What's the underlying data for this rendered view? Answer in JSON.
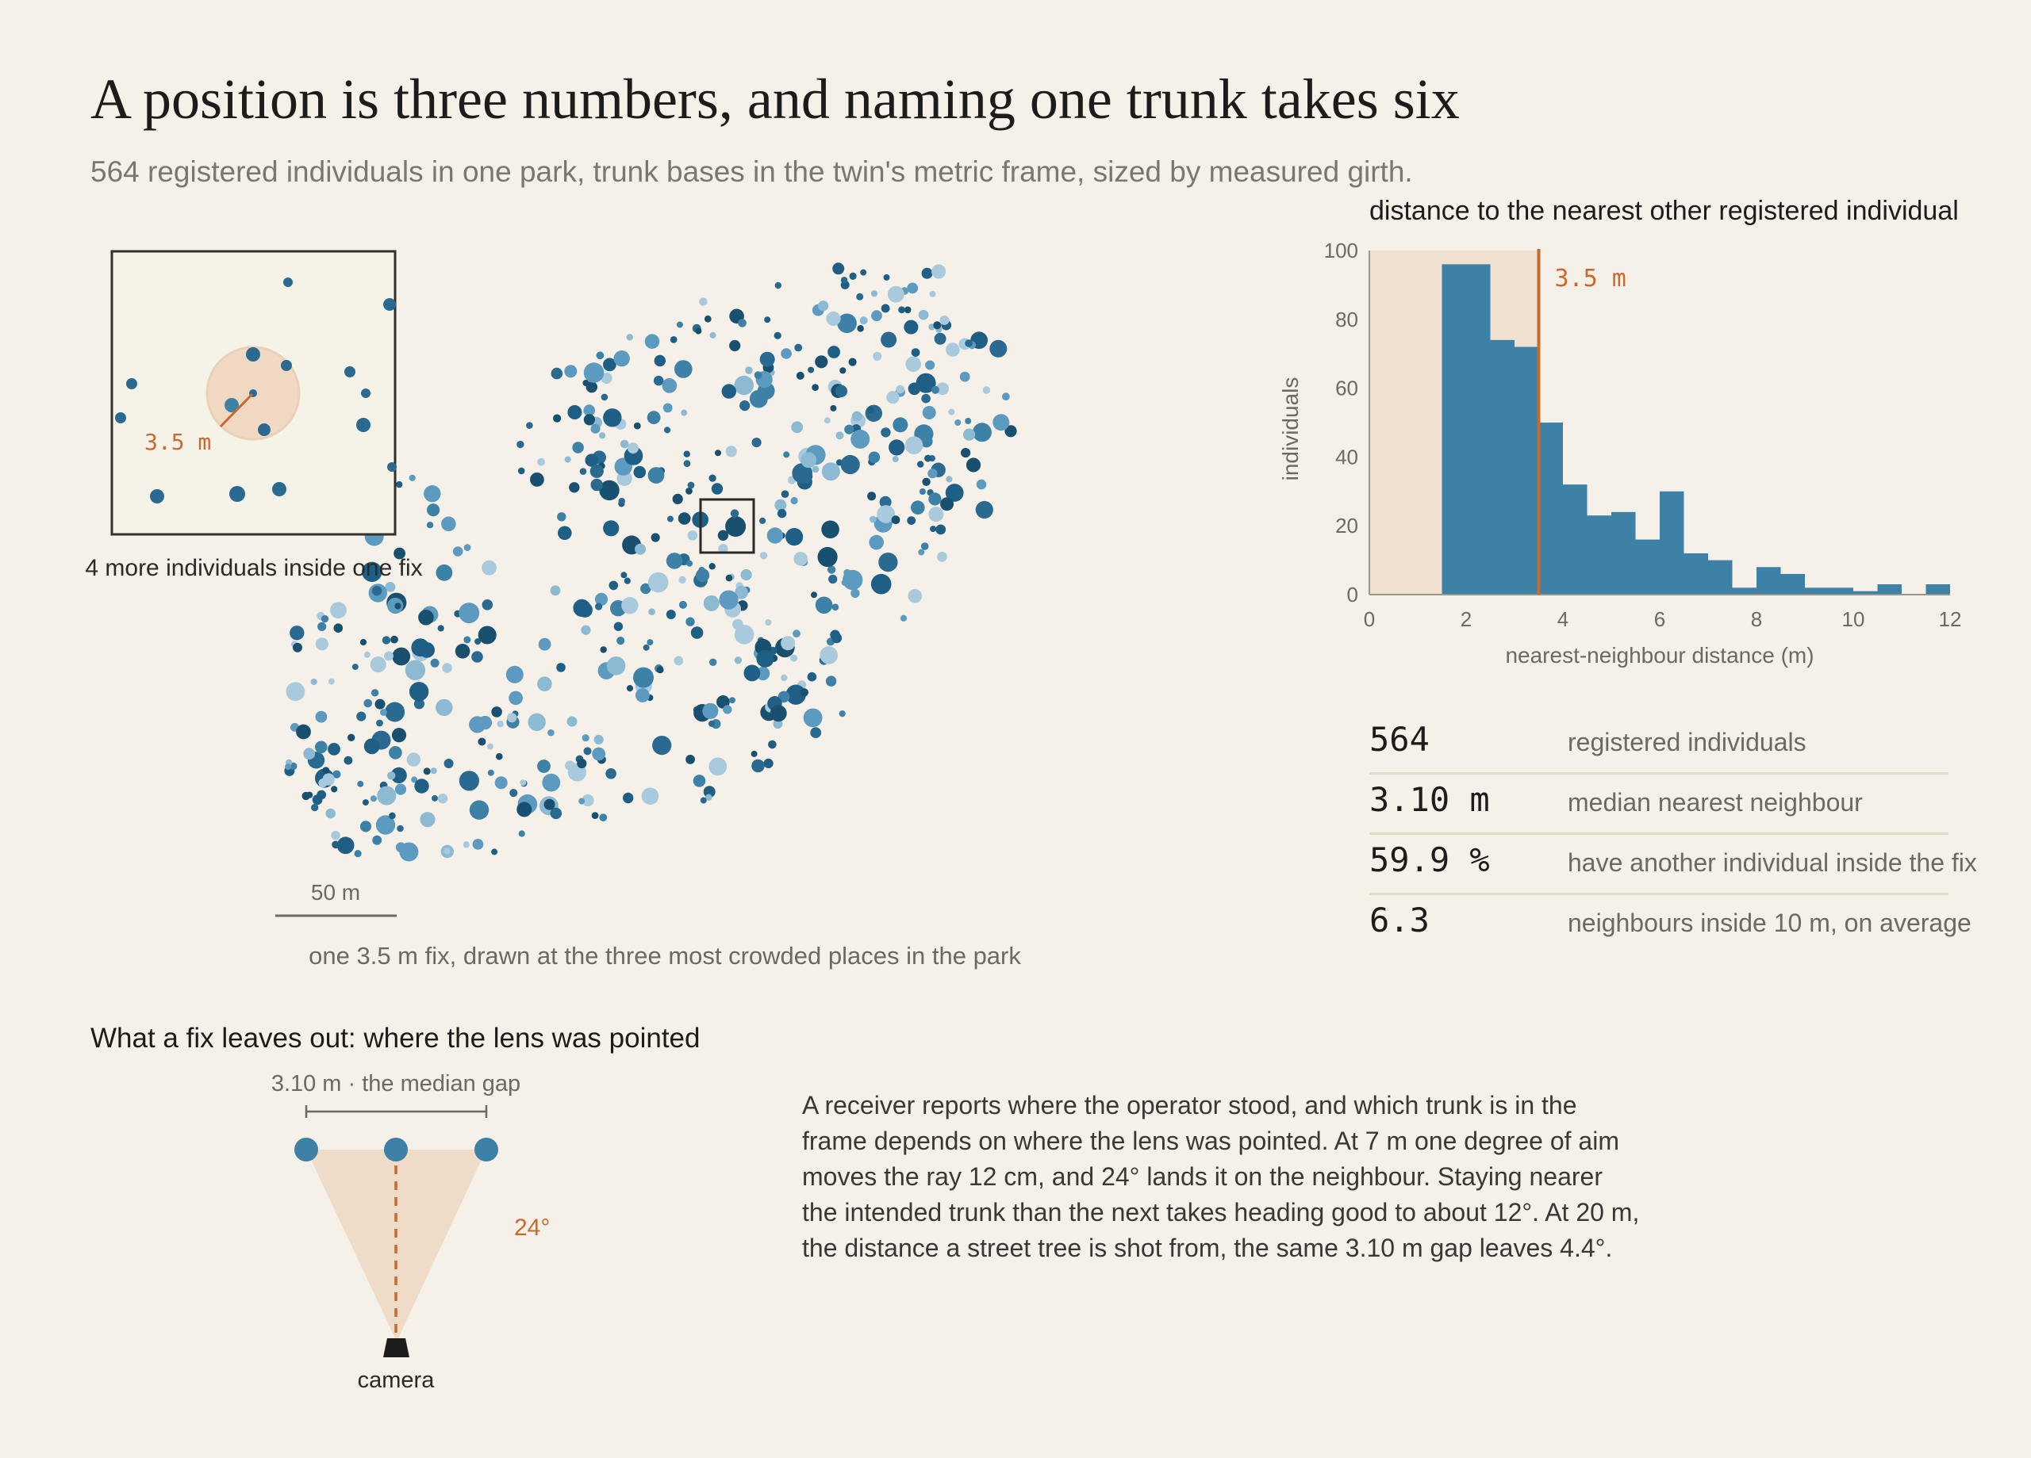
{
  "title": "A position is three numbers, and naming one trunk takes six",
  "subtitle": "564 registered individuals in one park, trunk bases in the twin's metric frame, sized by measured girth.",
  "colors": {
    "background": "#f5f0e8",
    "bar": "#3e81a6",
    "accent": "#c8692e",
    "fix_shade": "#f0e0d0",
    "dot_dark": "#1f5f85",
    "dot_light": "#a9c9dc"
  },
  "map": {
    "inset_label": "4 more individuals inside one fix",
    "inset_radius_label": "3.5 m",
    "scale_label": "50 m",
    "caption": "one 3.5 m fix, drawn at the three most crowded places in the park"
  },
  "histogram": {
    "title": "distance to the nearest other registered individual",
    "threshold_label": "3.5 m",
    "chart_data": {
      "type": "bar",
      "xlabel": "nearest-neighbour distance (m)",
      "ylabel": "individuals",
      "xlim": [
        0,
        12
      ],
      "ylim": [
        0,
        100
      ],
      "xticks": [
        0,
        2,
        4,
        6,
        8,
        10,
        12
      ],
      "yticks": [
        0,
        20,
        40,
        60,
        80,
        100
      ],
      "threshold": 3.5,
      "shaded_range": [
        0,
        3.5
      ],
      "bin_width": 0.5,
      "bins": [
        {
          "x0": 1.5,
          "count": 96
        },
        {
          "x0": 2.0,
          "count": 96
        },
        {
          "x0": 2.5,
          "count": 74
        },
        {
          "x0": 3.0,
          "count": 72
        },
        {
          "x0": 3.5,
          "count": 50
        },
        {
          "x0": 4.0,
          "count": 32
        },
        {
          "x0": 4.5,
          "count": 23
        },
        {
          "x0": 5.0,
          "count": 24
        },
        {
          "x0": 5.5,
          "count": 16
        },
        {
          "x0": 6.0,
          "count": 30
        },
        {
          "x0": 6.5,
          "count": 12
        },
        {
          "x0": 7.0,
          "count": 10
        },
        {
          "x0": 7.5,
          "count": 2
        },
        {
          "x0": 8.0,
          "count": 8
        },
        {
          "x0": 8.5,
          "count": 6
        },
        {
          "x0": 9.0,
          "count": 2
        },
        {
          "x0": 9.5,
          "count": 2
        },
        {
          "x0": 10.0,
          "count": 1
        },
        {
          "x0": 10.5,
          "count": 3
        },
        {
          "x0": 11.0,
          "count": 0
        },
        {
          "x0": 11.5,
          "count": 3
        }
      ]
    }
  },
  "stats": [
    {
      "value": "564",
      "label": "registered individuals"
    },
    {
      "value": "3.10 m",
      "label": "median nearest neighbour"
    },
    {
      "value": "59.9 %",
      "label": "have another individual inside the fix"
    },
    {
      "value": "6.3",
      "label": "neighbours inside 10 m, on average"
    }
  ],
  "section2_title": "What a fix leaves out: where the lens was pointed",
  "lens_diagram": {
    "gap_label": "3.10 m · the median gap",
    "angle_label": "24°",
    "camera_label": "camera"
  },
  "body_text": "A receiver reports where the operator stood, and which trunk is in the frame depends on where the lens was pointed. At 7 m one degree of aim moves the ray 12 cm, and 24° lands it on the neighbour. Staying nearer the intended trunk than the next takes heading good to about 12°. At 20 m, the distance a street tree is shot from, the same 3.10 m gap leaves 4.4°."
}
